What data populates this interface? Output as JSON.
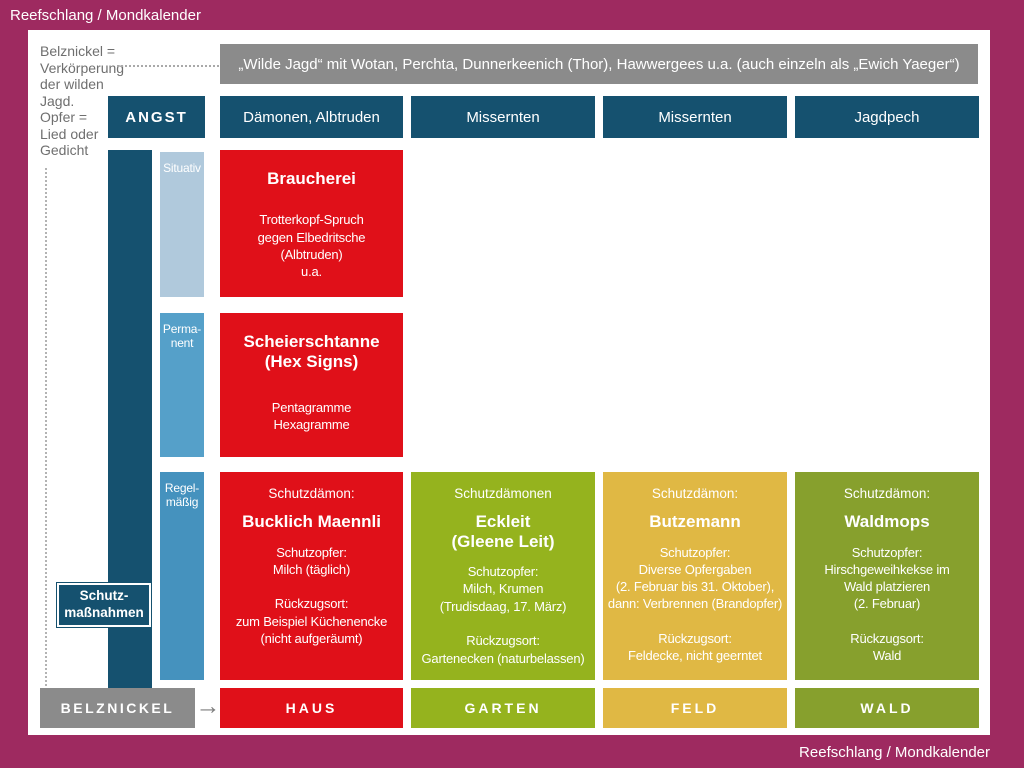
{
  "page": {
    "corner_label": "Reefschlang / Mondkalender"
  },
  "side_note": "Belznickel =\nVerkörperung\nder wilden\nJagd.\nOpfer =\nLied oder\nGedicht",
  "banner": "„Wilde Jagd“ mit Wotan, Perchta, Dunnerkeenich (Thor), Hawwergees u.a. (auch einzeln als „Ewich Yaeger“)",
  "angst_label": "ANGST",
  "threats": [
    "Dämonen, Albtruden",
    "Missernten",
    "Missernten",
    "Jagdpech"
  ],
  "row_labels": [
    "Situativ",
    "Perma-\nnent",
    "Regel-\nmäßig"
  ],
  "measures_label": "Schutz-\nmaßnahmen",
  "situativ_box": {
    "title": "Braucherei",
    "body": "Trotterkopf-Spruch\ngegen Elbedritsche\n(Albtruden)\nu.a."
  },
  "permanent_box": {
    "title": "Scheierschtanne\n(Hex Signs)",
    "body": "Pentagramme\nHexagramme"
  },
  "regular_boxes": [
    {
      "label": "Schutzdämon:",
      "name": "Bucklich Maennli",
      "details": "Schutzopfer:\nMilch (täglich)\n\nRückzugsort:\nzum Beispiel Küchenencke\n(nicht aufgeräumt)"
    },
    {
      "label": "Schutzdämonen",
      "name": "Eckleit\n(Gleene Leit)",
      "details": "Schutzopfer:\nMilch, Krumen\n(Trudisdaag, 17. März)\n\nRückzugsort:\nGartenecken (naturbelassen)"
    },
    {
      "label": "Schutzdämon:",
      "name": "Butzemann",
      "details": "Schutzopfer:\nDiverse Opfergaben\n(2. Februar bis 31. Oktober),\ndann: Verbrennen (Brandopfer)\n\nRückzugsort:\nFeldecke, nicht geerntet"
    },
    {
      "label": "Schutzdämon:",
      "name": "Waldmops",
      "details": "Schutzopfer:\nHirschgeweihkekse im\nWald platzieren\n(2. Februar)\n\nRückzugsort:\nWald"
    }
  ],
  "belznickel_label": "BELZNICKEL",
  "places": [
    "HAUS",
    "GARTEN",
    "FELD",
    "WALD"
  ],
  "icons": {
    "arrow_right": "→"
  },
  "colors": {
    "magenta": "#9e2a60",
    "teal": "#15516f",
    "red": "#e01019",
    "lightblue": "#b0c9dc",
    "midblue": "#55a0c9",
    "deepblue": "#4592be",
    "green": "#95b31e",
    "olive": "#87a02d",
    "yellow": "#e0b844",
    "gray": "#8b8b8b",
    "textgray": "#6f6f6f"
  }
}
